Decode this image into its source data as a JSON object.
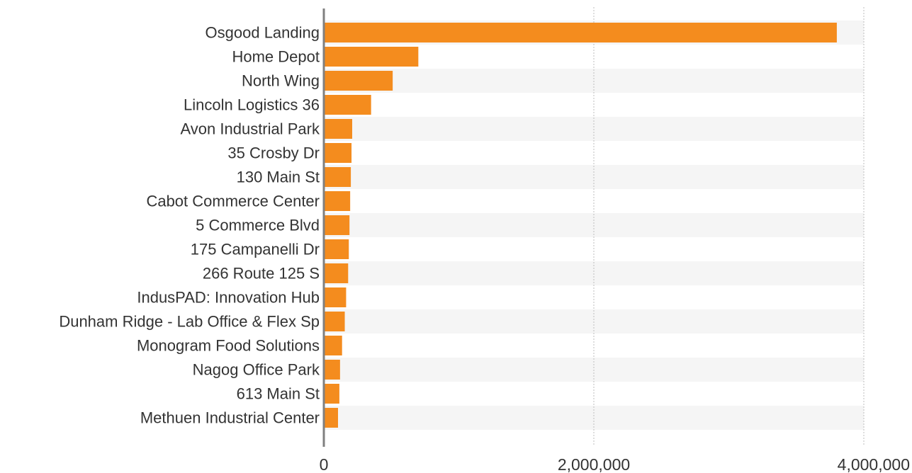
{
  "chart_data": {
    "type": "bar",
    "orientation": "horizontal",
    "title": "",
    "xlabel": "",
    "ylabel": "",
    "categories": [
      "Osgood Landing",
      "Home Depot",
      "North Wing",
      "Lincoln Logistics 36",
      "Avon Industrial Park",
      "35 Crosby Dr",
      "130 Main St",
      "Cabot Commerce Center",
      "5 Commerce Blvd",
      "175 Campanelli Dr",
      "266 Route 125 S",
      "IndusPAD: Innovation Hub",
      "Dunham Ridge - Lab Office & Flex Sp",
      "Monogram Food Solutions",
      "Nagog Office Park",
      "613 Main St",
      "Methuen Industrial Center"
    ],
    "values": [
      3800000,
      700000,
      510000,
      350000,
      210000,
      205000,
      200000,
      195000,
      190000,
      185000,
      180000,
      165000,
      155000,
      135000,
      120000,
      115000,
      105000
    ],
    "xlim": [
      0,
      4000000
    ],
    "x_ticks": [
      0,
      2000000,
      4000000
    ],
    "x_tick_labels": [
      "0",
      "2,000,000",
      "4,000,000"
    ],
    "grid": true,
    "legend": "none",
    "colors": {
      "bar": "#F48C1E",
      "band": "#F5F5F5",
      "axis": "#808080",
      "grid": "#BDBDBD",
      "text": "#333333"
    }
  }
}
